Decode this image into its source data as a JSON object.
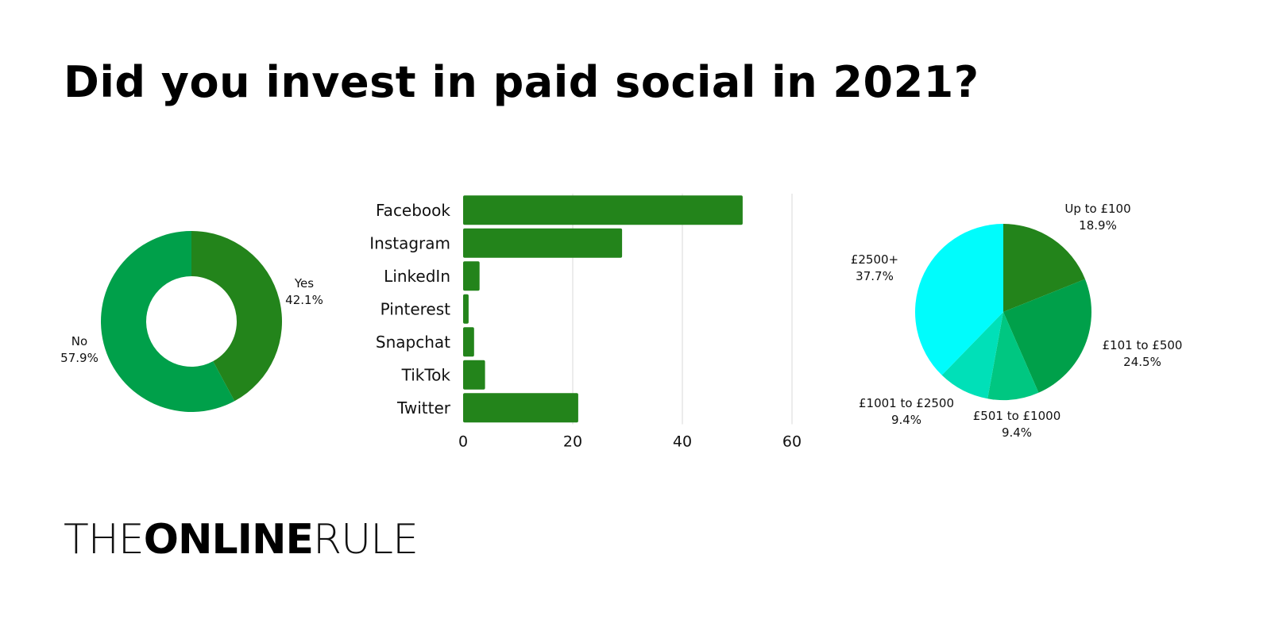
{
  "title": "Did you invest in paid social in 2021?",
  "brand": {
    "part1": "THE",
    "part2": "ONLINE",
    "part3": "RULE",
    "accent_color": "#23841b"
  },
  "chart_data": [
    {
      "type": "pie",
      "variant": "donut",
      "slices": [
        {
          "label": "Yes",
          "pct_label": "42.1%",
          "value": 42.1,
          "color": "#23841b"
        },
        {
          "label": "No",
          "pct_label": "57.9%",
          "value": 57.9,
          "color": "#00a04a"
        }
      ]
    },
    {
      "type": "bar",
      "orientation": "horizontal",
      "categories": [
        "Facebook",
        "Instagram",
        "LinkedIn",
        "Pinterest",
        "Snapchat",
        "TikTok",
        "Twitter"
      ],
      "values": [
        51,
        29,
        3,
        1,
        2,
        4,
        21
      ],
      "xlim": [
        0,
        60
      ],
      "xticks": [
        "0",
        "20",
        "40",
        "60"
      ],
      "grid": true,
      "color": "#23841b"
    },
    {
      "type": "pie",
      "slices": [
        {
          "label": "Up to £100",
          "pct_label": "18.9%",
          "value": 18.9,
          "color": "#23841b"
        },
        {
          "label": "£101 to £500",
          "pct_label": "24.5%",
          "value": 24.5,
          "color": "#00a04a"
        },
        {
          "label": "£501 to £1000",
          "pct_label": "9.4%",
          "value": 9.4,
          "color": "#00c781"
        },
        {
          "label": "£1001 to £2500",
          "pct_label": "9.4%",
          "value": 9.4,
          "color": "#00e0b8"
        },
        {
          "label": "£2500+",
          "pct_label": "37.7%",
          "value": 37.7,
          "color": "#00fcfc"
        }
      ]
    }
  ]
}
